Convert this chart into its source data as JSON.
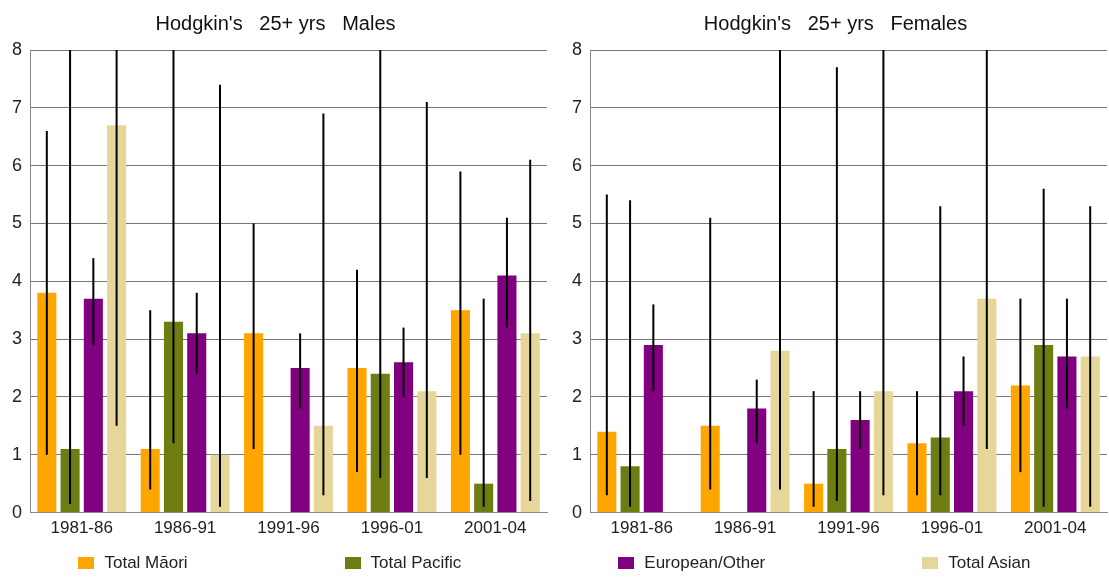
{
  "chart_data": [
    {
      "type": "bar",
      "title": "Hodgkin's   25+ yrs   Males",
      "categories": [
        "1981-86",
        "1986-91",
        "1991-96",
        "1996-01",
        "2001-04"
      ],
      "ylim": [
        0,
        8
      ],
      "yticks": [
        0,
        1,
        2,
        3,
        4,
        5,
        6,
        7,
        8
      ],
      "grid": "y",
      "legend": "bottom",
      "series": [
        {
          "name": "Total Māori",
          "color": "#ffa500",
          "values": [
            3.8,
            1.1,
            3.1,
            2.5,
            3.5
          ],
          "errors": [
            [
              1.0,
              6.6
            ],
            [
              0.4,
              3.5
            ],
            [
              1.1,
              5.0
            ],
            [
              0.7,
              4.2
            ],
            [
              1.0,
              5.9
            ]
          ]
        },
        {
          "name": "Total Pacific",
          "color": "#6e7d12",
          "values": [
            1.1,
            3.3,
            null,
            2.4,
            0.5
          ],
          "errors": [
            [
              0.15,
              8
            ],
            [
              1.2,
              8
            ],
            null,
            [
              0.6,
              8
            ],
            [
              0.1,
              3.7
            ]
          ]
        },
        {
          "name": "European/Other",
          "color": "#800080",
          "values": [
            3.7,
            3.1,
            2.5,
            2.6,
            4.1
          ],
          "errors": [
            [
              2.9,
              4.4
            ],
            [
              2.4,
              3.8
            ],
            [
              1.8,
              3.1
            ],
            [
              2.0,
              3.2
            ],
            [
              3.2,
              5.1
            ]
          ]
        },
        {
          "name": "Total Asian",
          "color": "#e6d699",
          "values": [
            6.7,
            1.0,
            1.5,
            2.1,
            3.1
          ],
          "errors": [
            [
              1.5,
              8
            ],
            [
              0.1,
              7.4
            ],
            [
              0.3,
              6.9
            ],
            [
              0.6,
              7.1
            ],
            [
              0.2,
              6.1
            ]
          ]
        }
      ]
    },
    {
      "type": "bar",
      "title": "Hodgkin's   25+ yrs   Females",
      "categories": [
        "1981-86",
        "1986-91",
        "1991-96",
        "1996-01",
        "2001-04"
      ],
      "ylim": [
        0,
        8
      ],
      "yticks": [
        0,
        1,
        2,
        3,
        4,
        5,
        6,
        7,
        8
      ],
      "grid": "y",
      "series": [
        {
          "color": "#ffa500",
          "values": [
            1.4,
            1.5,
            0.5,
            1.2,
            2.2
          ],
          "errors": [
            [
              0.3,
              5.5
            ],
            [
              0.4,
              5.1
            ],
            [
              0.1,
              2.1
            ],
            [
              0.3,
              2.1
            ],
            [
              0.7,
              3.7
            ]
          ]
        },
        {
          "color": "#6e7d12",
          "values": [
            0.8,
            null,
            1.1,
            1.3,
            2.9
          ],
          "errors": [
            [
              0.1,
              5.4
            ],
            null,
            [
              0.2,
              7.7
            ],
            [
              0.3,
              5.3
            ],
            [
              0.1,
              5.6
            ]
          ]
        },
        {
          "color": "#800080",
          "values": [
            2.9,
            1.8,
            1.6,
            2.1,
            2.7
          ],
          "errors": [
            [
              2.1,
              3.6
            ],
            [
              1.2,
              2.3
            ],
            [
              1.1,
              2.1
            ],
            [
              1.5,
              2.7
            ],
            [
              1.8,
              3.7
            ]
          ]
        },
        {
          "color": "#e6d699",
          "values": [
            null,
            2.8,
            2.1,
            3.7,
            2.7
          ],
          "errors": [
            null,
            [
              0.4,
              8
            ],
            [
              0.3,
              8
            ],
            [
              1.1,
              8
            ],
            [
              0.1,
              5.3
            ]
          ]
        }
      ]
    }
  ]
}
